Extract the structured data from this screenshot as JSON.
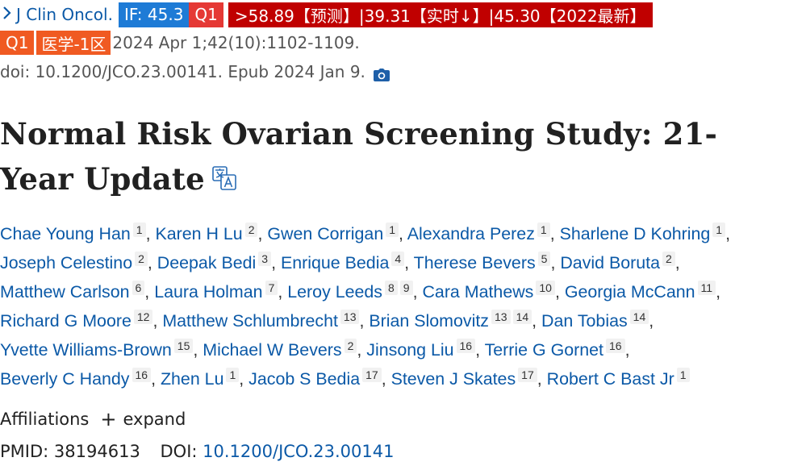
{
  "header": {
    "journal": "J Clin Oncol.",
    "if_badge": "IF: 45.3",
    "q1_badge": "Q1",
    "prediction_badge": ">58.89【预测】|39.31【实时↓】|45.30【2022最新】",
    "quartile_badge": "Q1",
    "subject_badge": "医学-1区",
    "citation": "2024 Apr 1;42(10):1102-1109.",
    "doi_epub": "doi: 10.1200/JCO.23.00141. Epub 2024 Jan 9.",
    "icons": [
      "chevron-right-icon",
      "camera-icon"
    ]
  },
  "article": {
    "title": "Normal Risk Ovarian Screening Study: 21-Year Update",
    "translate_icon": "translate-icon"
  },
  "authors": [
    [
      {
        "name": "Chae Young Han",
        "aff": [
          "1"
        ]
      },
      {
        "name": "Karen H Lu",
        "aff": [
          "2"
        ]
      },
      {
        "name": "Gwen Corrigan",
        "aff": [
          "1"
        ]
      },
      {
        "name": "Alexandra Perez",
        "aff": [
          "1"
        ]
      },
      {
        "name": "Sharlene D Kohring",
        "aff": [
          "1"
        ]
      }
    ],
    [
      {
        "name": "Joseph Celestino",
        "aff": [
          "2"
        ]
      },
      {
        "name": "Deepak Bedi",
        "aff": [
          "3"
        ]
      },
      {
        "name": "Enrique Bedia",
        "aff": [
          "4"
        ]
      },
      {
        "name": "Therese Bevers",
        "aff": [
          "5"
        ]
      },
      {
        "name": "David Boruta",
        "aff": [
          "2"
        ]
      }
    ],
    [
      {
        "name": "Matthew Carlson",
        "aff": [
          "6"
        ]
      },
      {
        "name": "Laura Holman",
        "aff": [
          "7"
        ]
      },
      {
        "name": "Leroy Leeds",
        "aff": [
          "8",
          "9"
        ]
      },
      {
        "name": "Cara Mathews",
        "aff": [
          "10"
        ]
      },
      {
        "name": "Georgia McCann",
        "aff": [
          "11"
        ]
      }
    ],
    [
      {
        "name": "Richard G Moore",
        "aff": [
          "12"
        ]
      },
      {
        "name": "Matthew Schlumbrecht",
        "aff": [
          "13"
        ]
      },
      {
        "name": "Brian Slomovitz",
        "aff": [
          "13",
          "14"
        ]
      },
      {
        "name": "Dan Tobias",
        "aff": [
          "14"
        ]
      }
    ],
    [
      {
        "name": "Yvette Williams-Brown",
        "aff": [
          "15"
        ]
      },
      {
        "name": "Michael W Bevers",
        "aff": [
          "2"
        ]
      },
      {
        "name": "Jinsong Liu",
        "aff": [
          "16"
        ]
      },
      {
        "name": "Terrie G Gornet",
        "aff": [
          "16"
        ]
      }
    ],
    [
      {
        "name": "Beverly C Handy",
        "aff": [
          "16"
        ]
      },
      {
        "name": "Zhen Lu",
        "aff": [
          "1"
        ]
      },
      {
        "name": "Jacob S Bedia",
        "aff": [
          "17"
        ]
      },
      {
        "name": "Steven J Skates",
        "aff": [
          "17"
        ]
      },
      {
        "name": "Robert C Bast Jr",
        "aff": [
          "1"
        ]
      }
    ]
  ],
  "affiliations": {
    "label": "Affiliations",
    "toggle": "expand"
  },
  "identifiers": {
    "pmid_label": "PMID:",
    "pmid": "38194613",
    "doi_label": "DOI:",
    "doi": "10.1200/JCO.23.00141"
  },
  "colors": {
    "link": "#0b59a7",
    "if_badge": "#1e7bd6",
    "q1_badge": "#e53935",
    "prediction_badge": "#c00000",
    "subject_badge": "#f05a22"
  }
}
